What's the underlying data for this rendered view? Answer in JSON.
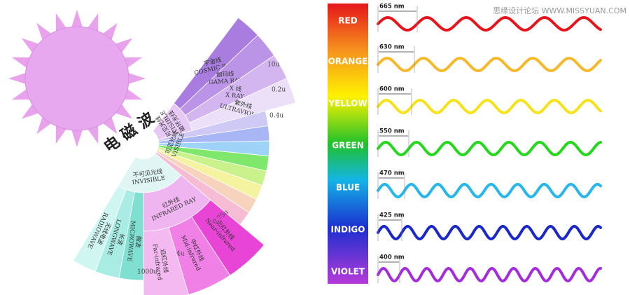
{
  "watermark": "思缘设计论坛 WWW.MISSYUAN.COM",
  "diagram": {
    "title": "电 磁 波",
    "upper_group": [
      "不可见光线",
      "INVISIBLE",
      "破坏光线"
    ],
    "upper_bands": [
      {
        "zh": "宇宙线",
        "en": "COSMIC RAY"
      },
      {
        "zh": "伽玛线",
        "en": "GAMA RAY"
      },
      {
        "zh": "X 线",
        "en": "X RAY"
      },
      {
        "zh": "紫外线",
        "en": "ULTRAVIOLET"
      }
    ],
    "visible": [
      "可见光线",
      "VISIBLE"
    ],
    "lower_group": [
      "不可见光线",
      "INVISIBLE"
    ],
    "infrared": [
      "红外线",
      "INFRARED RAY"
    ],
    "infrared_bands": [
      {
        "zh": "近红外线",
        "en": "Near-infrared"
      },
      {
        "zh": "中红外线",
        "en": "Mid-infrared"
      },
      {
        "zh": "远红外线",
        "en": "Far-infrared"
      }
    ],
    "long_bands": [
      {
        "zh": "微波",
        "en": "MICROWAVE"
      },
      {
        "zh": "长波",
        "en": "LONGWAVE"
      },
      {
        "zh": "无线电波",
        "en": "RADIOWAVE"
      }
    ],
    "scale": [
      "10u",
      "0.2u",
      "0.4u",
      "0.75u",
      "4u",
      "1000u"
    ]
  },
  "spectrum": [
    {
      "name": "RED",
      "wavelength": "665 nm"
    },
    {
      "name": "ORANGE",
      "wavelength": "630 nm"
    },
    {
      "name": "YELLOW",
      "wavelength": "600 nm"
    },
    {
      "name": "GREEN",
      "wavelength": "550 nm"
    },
    {
      "name": "BLUE",
      "wavelength": "470 nm"
    },
    {
      "name": "INDIGO",
      "wavelength": "425 nm"
    },
    {
      "name": "VIOLET",
      "wavelength": "400 nm"
    }
  ]
}
